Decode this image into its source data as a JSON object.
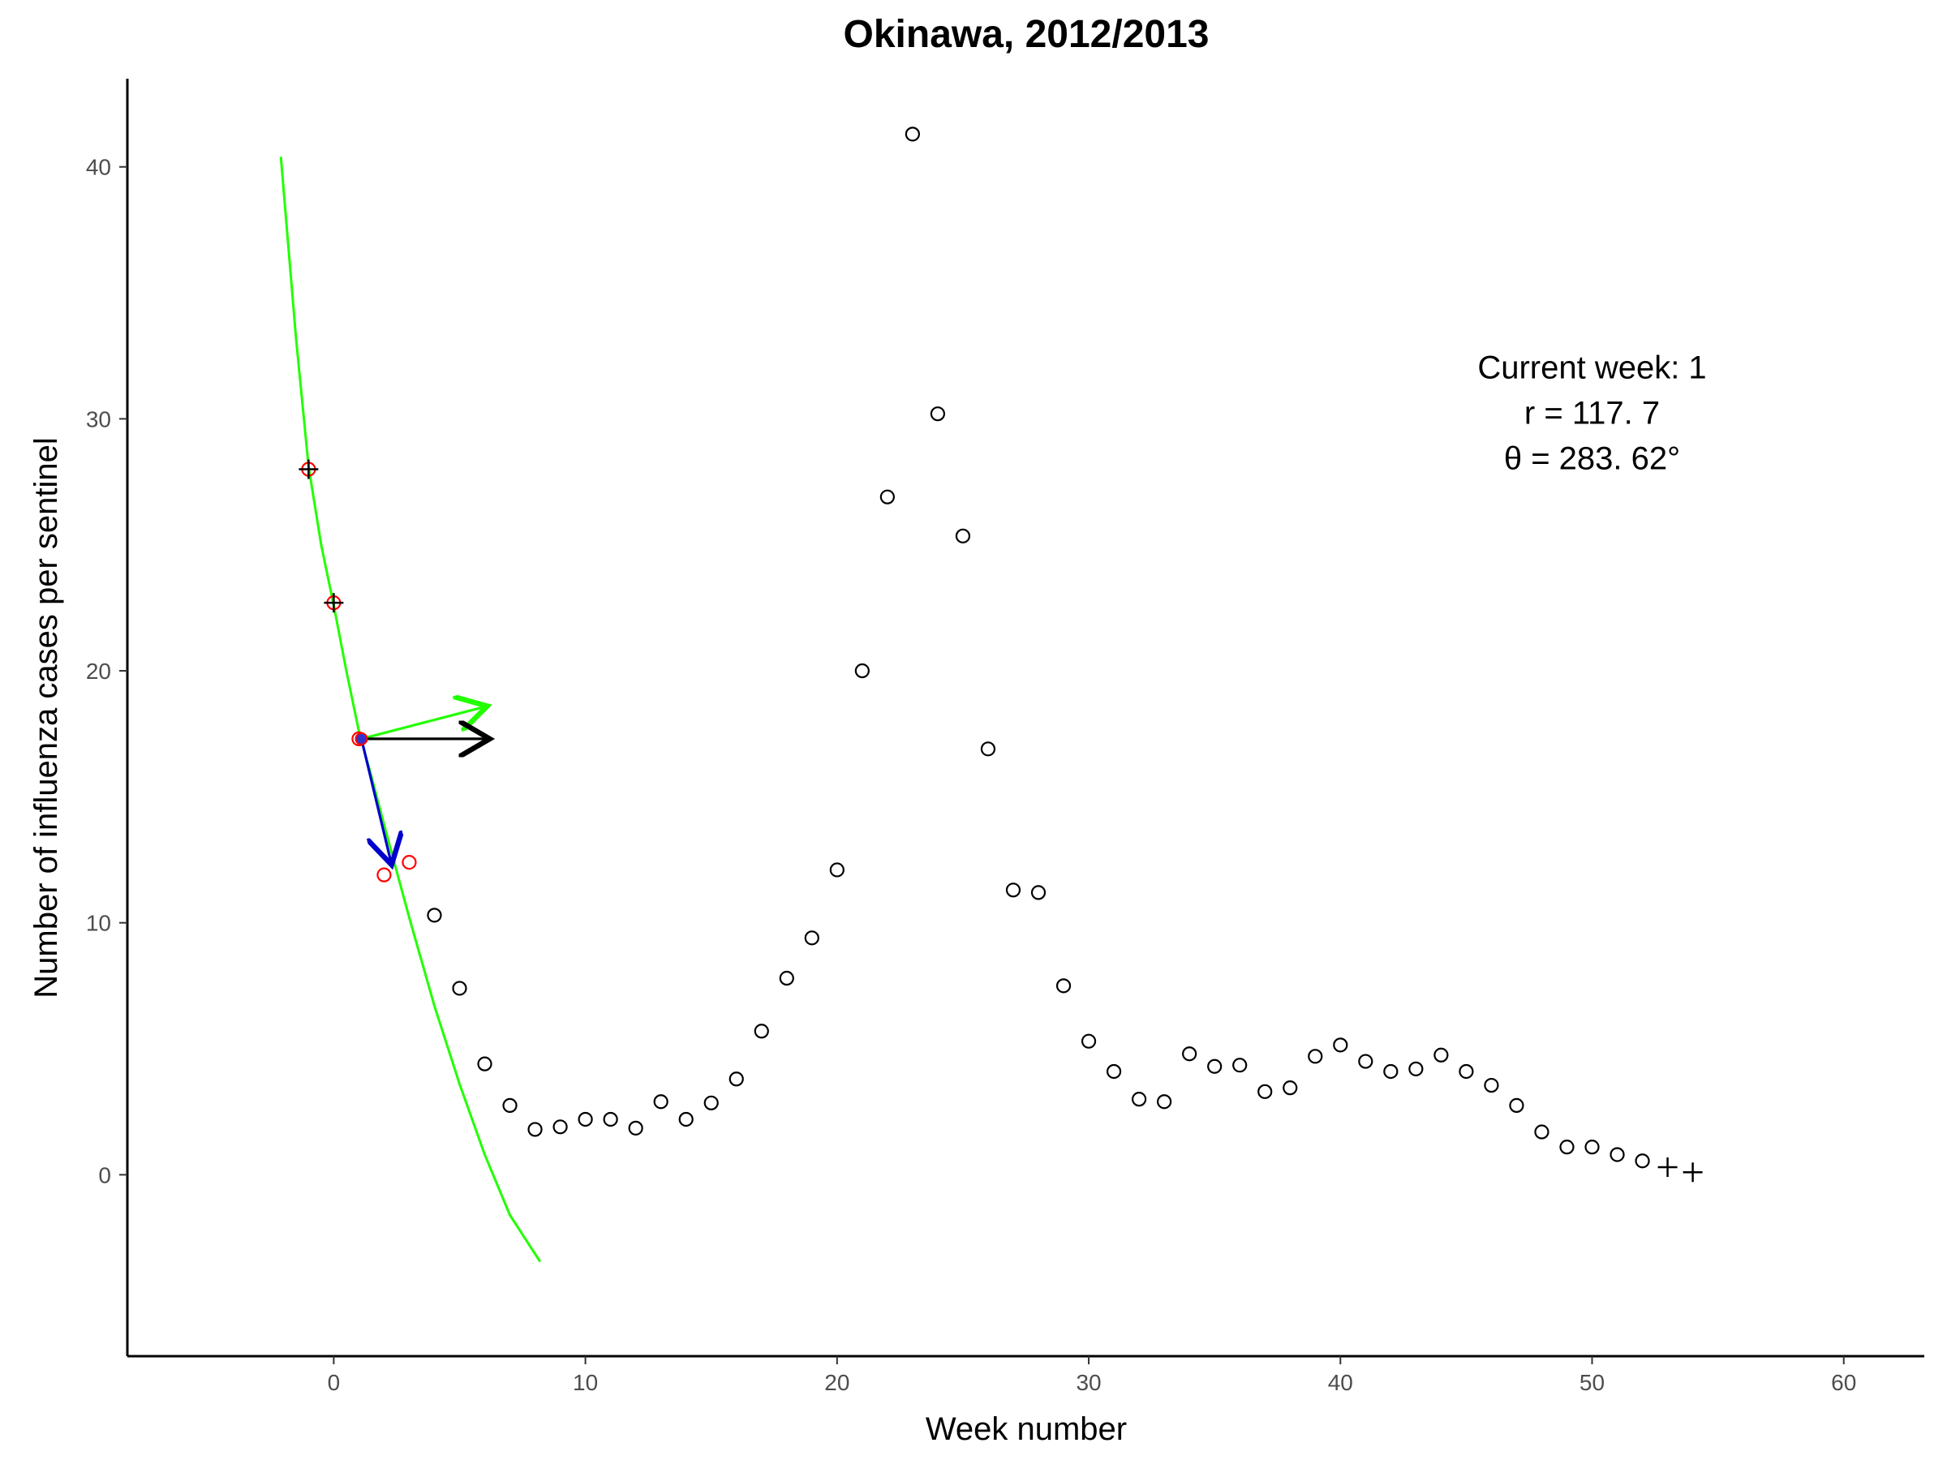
{
  "chart_data": {
    "type": "scatter",
    "title": "Okinawa, 2012/2013",
    "xlabel": "Week number",
    "ylabel": "Number of influenza cases per sentinel",
    "xlim": [
      -8.2,
      63.2
    ],
    "ylim": [
      -7.2,
      43.5
    ],
    "xticks": [
      0,
      10,
      20,
      30,
      40,
      50,
      60
    ],
    "yticks": [
      0,
      10,
      20,
      30,
      40
    ],
    "grid": false,
    "legend": "none",
    "colors": {
      "points": "#000000",
      "history_points": "#ff0000",
      "fit_curve": "#22ff00",
      "tangent_arrow": "#22ff00",
      "horizontal_arrow": "#000000",
      "normal_arrow": "#0000cc",
      "current_point": "#3333cc"
    },
    "series": [
      {
        "values": [
          {
            "x": 4,
            "y": 10.3
          },
          {
            "x": 5,
            "y": 7.4
          },
          {
            "x": 6,
            "y": 4.4
          },
          {
            "x": 7,
            "y": 2.75
          },
          {
            "x": 8,
            "y": 1.8
          },
          {
            "x": 9,
            "y": 1.9
          },
          {
            "x": 10,
            "y": 2.2
          },
          {
            "x": 11,
            "y": 2.2
          },
          {
            "x": 12,
            "y": 1.85
          },
          {
            "x": 13,
            "y": 2.9
          },
          {
            "x": 14,
            "y": 2.2
          },
          {
            "x": 15,
            "y": 2.85
          },
          {
            "x": 16,
            "y": 3.8
          },
          {
            "x": 17,
            "y": 5.7
          },
          {
            "x": 18,
            "y": 7.8
          },
          {
            "x": 19,
            "y": 9.4
          },
          {
            "x": 20,
            "y": 12.1
          },
          {
            "x": 21,
            "y": 20.0
          },
          {
            "x": 22,
            "y": 26.9
          },
          {
            "x": 23,
            "y": 41.3
          },
          {
            "x": 24,
            "y": 30.2
          },
          {
            "x": 25,
            "y": 25.35
          },
          {
            "x": 26,
            "y": 16.9
          },
          {
            "x": 27,
            "y": 11.3
          },
          {
            "x": 28,
            "y": 11.2
          },
          {
            "x": 29,
            "y": 7.5
          },
          {
            "x": 30,
            "y": 5.3
          },
          {
            "x": 31,
            "y": 4.1
          },
          {
            "x": 32,
            "y": 3.0
          },
          {
            "x": 33,
            "y": 2.9
          },
          {
            "x": 34,
            "y": 4.8
          },
          {
            "x": 35,
            "y": 4.3
          },
          {
            "x": 36,
            "y": 4.35
          },
          {
            "x": 37,
            "y": 3.3
          },
          {
            "x": 38,
            "y": 3.45
          },
          {
            "x": 39,
            "y": 4.7
          },
          {
            "x": 40,
            "y": 5.15
          },
          {
            "x": 41,
            "y": 4.5
          },
          {
            "x": 42,
            "y": 4.1
          },
          {
            "x": 43,
            "y": 4.2
          },
          {
            "x": 44,
            "y": 4.75
          },
          {
            "x": 45,
            "y": 4.1
          },
          {
            "x": 46,
            "y": 3.55
          },
          {
            "x": 47,
            "y": 2.75
          },
          {
            "x": 48,
            "y": 1.7
          },
          {
            "x": 49,
            "y": 1.1
          },
          {
            "x": 50,
            "y": 1.1
          },
          {
            "x": 51,
            "y": 0.8
          },
          {
            "x": 52,
            "y": 0.55
          }
        ]
      },
      {
        "marker": "plus",
        "values": [
          {
            "x": -1,
            "y": 28.0
          },
          {
            "x": 0,
            "y": 22.7
          },
          {
            "x": 53,
            "y": 0.3
          },
          {
            "x": 54,
            "y": 0.1
          }
        ]
      },
      {
        "marker": "circle-red",
        "values": [
          {
            "x": -1,
            "y": 28.0
          },
          {
            "x": 0,
            "y": 22.7
          },
          {
            "x": 1,
            "y": 17.3
          },
          {
            "x": 2,
            "y": 11.9
          },
          {
            "x": 3,
            "y": 12.4
          }
        ]
      },
      {
        "marker": "filled-current",
        "values": [
          {
            "x": 1.1,
            "y": 17.3
          }
        ]
      },
      {
        "type": "line",
        "values": [
          {
            "x": -2.1,
            "y": 40.4
          },
          {
            "x": -1.5,
            "y": 33.2
          },
          {
            "x": -1,
            "y": 28.1
          },
          {
            "x": -0.5,
            "y": 25.0
          },
          {
            "x": 0,
            "y": 22.6
          },
          {
            "x": 0.5,
            "y": 20.0
          },
          {
            "x": 1,
            "y": 17.6
          },
          {
            "x": 1.5,
            "y": 15.8
          },
          {
            "x": 2,
            "y": 13.9
          },
          {
            "x": 3,
            "y": 10.2
          },
          {
            "x": 4,
            "y": 6.7
          },
          {
            "x": 5,
            "y": 3.6
          },
          {
            "x": 6,
            "y": 0.8
          },
          {
            "x": 7,
            "y": -1.6
          },
          {
            "x": 8.2,
            "y": -3.45
          }
        ]
      }
    ],
    "arrows": [
      {
        "from": [
          1.1,
          17.3
        ],
        "to": [
          6.1,
          18.6
        ],
        "color": "tangent_arrow"
      },
      {
        "from": [
          1.1,
          17.3
        ],
        "to": [
          6.2,
          17.3
        ],
        "color": "horizontal_arrow"
      },
      {
        "from": [
          1.1,
          17.3
        ],
        "to": [
          2.3,
          12.3
        ],
        "color": "normal_arrow"
      }
    ],
    "annotation": {
      "line1": "Current week: 1",
      "line2": "r = 117. 7",
      "line3": "θ = 283. 62°",
      "x": 50.0,
      "y": 30.0
    }
  }
}
